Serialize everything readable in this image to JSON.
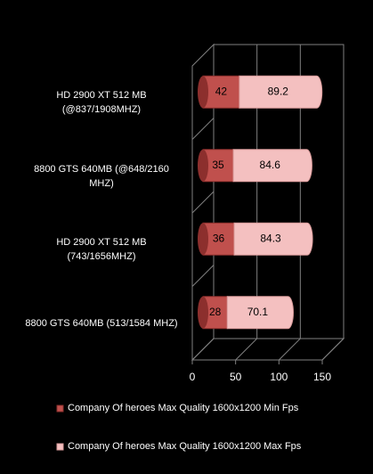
{
  "chart_data": {
    "type": "bar",
    "orientation": "horizontal",
    "stacked": true,
    "categories": [
      "HD 2900 XT 512 MB (@837/1908MHZ)",
      "8800 GTS 640MB (@648/2160 MHZ)",
      "HD 2900 XT 512 MB (743/1656MHZ)",
      "8800 GTS 640MB (513/1584 MHZ)"
    ],
    "series": [
      {
        "name": "Company Of heroes Max Quality 1600x1200 Min Fps",
        "color": "#c0504d",
        "values": [
          42,
          35,
          36,
          28
        ]
      },
      {
        "name": "Company Of heroes Max Quality 1600x1200 Max Fps",
        "color": "#f4c0c0",
        "values": [
          89.2,
          84.6,
          84.3,
          70.1
        ]
      }
    ],
    "xlim": [
      0,
      150
    ],
    "xticks": [
      0,
      50,
      100,
      150
    ],
    "grid": true,
    "legend": "bottom"
  }
}
